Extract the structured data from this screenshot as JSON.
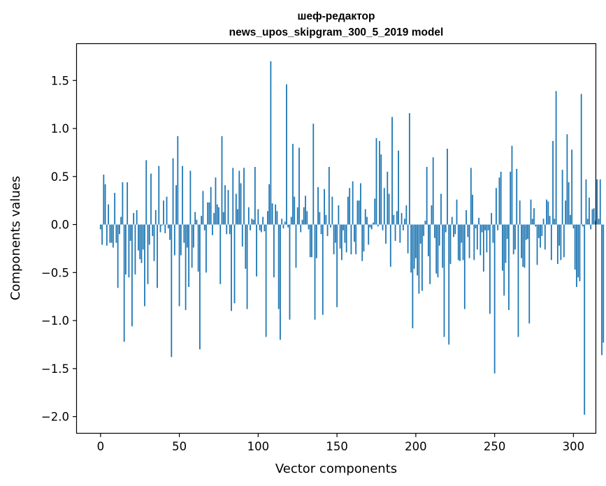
{
  "chart_data": {
    "type": "bar",
    "title": "шеф-редактор",
    "subtitle": "news_upos_skipgram_300_5_2019 model",
    "xlabel": "Vector components",
    "ylabel": "Components values",
    "xlim": [
      -15,
      314
    ],
    "ylim": [
      -2.17,
      1.88
    ],
    "x_ticks": [
      0,
      50,
      100,
      150,
      200,
      250,
      300
    ],
    "y_ticks": [
      1.5,
      1.0,
      0.5,
      0.0,
      -0.5,
      -1.0,
      -1.5,
      -2.0
    ],
    "x_tick_labels": [
      "0",
      "50",
      "100",
      "150",
      "200",
      "250",
      "300"
    ],
    "y_tick_labels": [
      "1.5",
      "1.0",
      "0.5",
      "0.0",
      "−0.5",
      "−1.0",
      "−1.5",
      "−2.0"
    ],
    "bar_color": "#1f77b4",
    "values": [
      -0.05,
      -0.21,
      0.52,
      0.42,
      -0.22,
      0.21,
      -0.19,
      -0.19,
      -0.24,
      0.33,
      -0.19,
      -0.66,
      -0.1,
      0.08,
      0.44,
      -1.22,
      -0.52,
      0.44,
      -0.55,
      -0.17,
      -1.06,
      0.12,
      -0.52,
      0.15,
      -0.27,
      -0.36,
      -0.4,
      -0.26,
      -0.85,
      0.67,
      -0.62,
      -0.21,
      0.53,
      -0.12,
      -0.38,
      0.15,
      -0.66,
      0.61,
      -0.08,
      -0.01,
      0.25,
      -0.09,
      0.29,
      -0.04,
      -0.16,
      -1.38,
      0.69,
      -0.32,
      0.41,
      0.92,
      -0.85,
      -0.32,
      0.61,
      -0.19,
      -0.89,
      -0.24,
      -0.65,
      0.56,
      -0.45,
      -0.24,
      0.13,
      0.05,
      -0.49,
      -1.3,
      0.09,
      0.35,
      -0.06,
      -0.5,
      0.23,
      0.23,
      0.39,
      -0.11,
      0.12,
      0.49,
      0.21,
      0.18,
      -0.62,
      0.92,
      0.13,
      0.41,
      -0.1,
      0.36,
      -0.1,
      -0.9,
      0.59,
      -0.82,
      0.32,
      0.16,
      0.56,
      0.43,
      -0.23,
      0.59,
      -0.46,
      -0.88,
      0.18,
      -0.06,
      0.06,
      0.05,
      0.6,
      -0.54,
      0.16,
      -0.06,
      -0.08,
      0.08,
      -0.07,
      -1.17,
      0.14,
      0.42,
      1.7,
      0.22,
      -0.55,
      0.21,
      0.14,
      -0.88,
      -1.2,
      0.06,
      -0.04,
      0.03,
      1.46,
      -0.03,
      -0.99,
      0.08,
      0.84,
      0.29,
      -0.45,
      0.18,
      0.8,
      -0.08,
      0.05,
      0.18,
      0.3,
      0.14,
      -0.05,
      -0.34,
      -0.34,
      1.05,
      -0.99,
      -0.35,
      0.39,
      0.13,
      -0.1,
      -0.94,
      0.37,
      0.1,
      -0.12,
      0.6,
      -0.03,
      0.29,
      -0.31,
      -0.19,
      -0.86,
      0.2,
      -0.25,
      -0.37,
      -0.06,
      -0.19,
      -0.29,
      0.29,
      0.38,
      -0.31,
      0.45,
      -0.18,
      -0.31,
      0.25,
      0.25,
      0.43,
      -0.38,
      -0.28,
      0.16,
      0.08,
      -0.21,
      -0.03,
      -0.05,
      0.02,
      0.27,
      0.9,
      -0.02,
      0.87,
      0.73,
      -0.06,
      0.38,
      -0.2,
      0.55,
      0.32,
      -0.44,
      1.12,
      0.1,
      -0.17,
      0.14,
      0.77,
      -0.19,
      0.12,
      -0.06,
      0.06,
      0.2,
      -0.3,
      1.16,
      -0.5,
      -1.08,
      -0.46,
      -0.35,
      -0.53,
      -0.72,
      -0.2,
      -0.69,
      -0.12,
      0.04,
      0.6,
      -0.33,
      -0.62,
      0.2,
      0.7,
      -0.14,
      -0.51,
      -0.55,
      -0.22,
      0.32,
      -0.45,
      -1.17,
      -0.08,
      0.79,
      -1.25,
      -0.41,
      0.08,
      -0.13,
      -0.1,
      0.26,
      -0.37,
      -0.38,
      -0.19,
      -0.37,
      -0.88,
      0.15,
      -0.13,
      -0.35,
      0.59,
      0.31,
      -0.37,
      -0.04,
      -0.26,
      0.07,
      -0.32,
      -0.08,
      -0.49,
      -0.06,
      -0.29,
      -0.06,
      -0.93,
      0.12,
      -0.19,
      -1.55,
      0.38,
      -0.06,
      0.49,
      0.55,
      -0.48,
      -0.74,
      -0.4,
      -0.15,
      -0.89,
      0.55,
      0.82,
      -0.31,
      -0.26,
      0.58,
      -1.17,
      0.25,
      -0.35,
      -0.44,
      -0.45,
      -0.16,
      -0.15,
      -1.03,
      0.26,
      0.06,
      0.17,
      -0.02,
      -0.42,
      -0.14,
      -0.24,
      -0.12,
      0.06,
      -0.26,
      0.26,
      0.24,
      0.09,
      -0.37,
      0.87,
      0.06,
      1.39,
      -0.41,
      -0.22,
      -0.37,
      0.57,
      -0.34,
      0.25,
      0.94,
      0.44,
      0.1,
      0.78,
      -0.04,
      -0.47,
      -0.65,
      -0.55,
      -0.59,
      1.36,
      -0.02,
      -1.98,
      0.47,
      0.06,
      0.28,
      -0.05,
      0.16,
      0.17,
      0.04,
      0.47,
      0.06,
      0.47,
      -1.36,
      -1.23
    ]
  }
}
